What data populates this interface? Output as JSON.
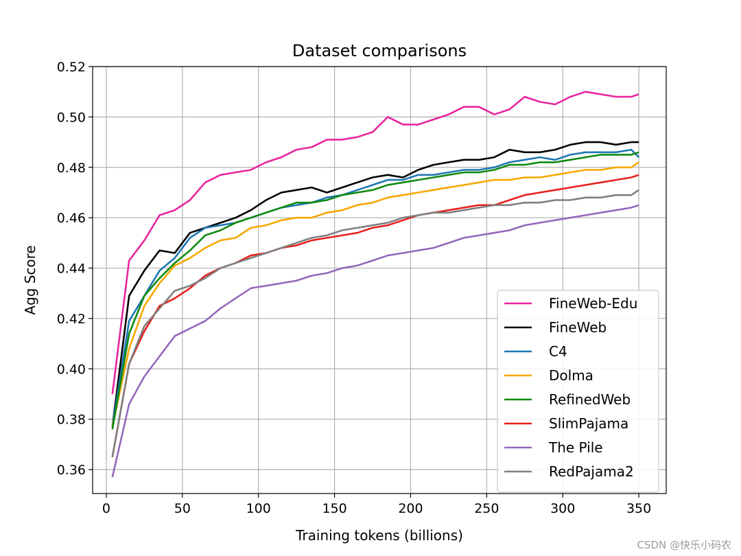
{
  "watermark": "CSDN @快乐小码农",
  "chart_data": {
    "type": "line",
    "title": "Dataset comparisons",
    "xlabel": "Training tokens (billions)",
    "ylabel": "Agg Score",
    "xlim": [
      -9,
      368
    ],
    "ylim": [
      0.3505,
      0.52
    ],
    "xticks": [
      0,
      50,
      100,
      150,
      200,
      250,
      300,
      350
    ],
    "yticks": [
      0.36,
      0.38,
      0.4,
      0.42,
      0.44,
      0.46,
      0.48,
      0.5,
      0.52
    ],
    "ytick_labels": [
      "0.36",
      "0.38",
      "0.40",
      "0.42",
      "0.44",
      "0.46",
      "0.48",
      "0.50",
      "0.52"
    ],
    "grid": true,
    "legend_position": "lower-right",
    "x": [
      4,
      15,
      25,
      35,
      45,
      55,
      65,
      75,
      85,
      95,
      105,
      115,
      125,
      135,
      145,
      155,
      165,
      175,
      185,
      195,
      205,
      215,
      225,
      235,
      245,
      255,
      265,
      275,
      285,
      295,
      305,
      315,
      325,
      335,
      345,
      350
    ],
    "series": [
      {
        "name": "FineWeb-Edu",
        "color": "#e8259e",
        "values": [
          0.39,
          0.443,
          0.451,
          0.461,
          0.463,
          0.467,
          0.474,
          0.477,
          0.478,
          0.479,
          0.482,
          0.484,
          0.487,
          0.488,
          0.491,
          0.491,
          0.492,
          0.494,
          0.5,
          0.497,
          0.497,
          0.499,
          0.501,
          0.504,
          0.504,
          0.501,
          0.503,
          0.508,
          0.506,
          0.505,
          0.508,
          0.51,
          0.509,
          0.508,
          0.508,
          0.509
        ]
      },
      {
        "name": "FineWeb",
        "color": "#000000",
        "values": [
          0.377,
          0.429,
          0.439,
          0.447,
          0.446,
          0.454,
          0.456,
          0.458,
          0.46,
          0.463,
          0.467,
          0.47,
          0.471,
          0.472,
          0.47,
          0.472,
          0.474,
          0.476,
          0.477,
          0.476,
          0.479,
          0.481,
          0.482,
          0.483,
          0.483,
          0.484,
          0.487,
          0.486,
          0.486,
          0.487,
          0.489,
          0.49,
          0.49,
          0.489,
          0.49,
          0.49
        ]
      },
      {
        "name": "C4",
        "color": "#1f77b4",
        "values": [
          0.377,
          0.419,
          0.429,
          0.439,
          0.444,
          0.452,
          0.456,
          0.457,
          0.458,
          0.46,
          0.462,
          0.464,
          0.465,
          0.466,
          0.468,
          0.469,
          0.471,
          0.473,
          0.475,
          0.475,
          0.477,
          0.477,
          0.478,
          0.479,
          0.479,
          0.48,
          0.482,
          0.483,
          0.484,
          0.483,
          0.485,
          0.486,
          0.486,
          0.486,
          0.487,
          0.484
        ]
      },
      {
        "name": "Dolma",
        "color": "#f5a800",
        "values": [
          0.377,
          0.408,
          0.425,
          0.434,
          0.441,
          0.444,
          0.448,
          0.451,
          0.452,
          0.456,
          0.457,
          0.459,
          0.46,
          0.46,
          0.462,
          0.463,
          0.465,
          0.466,
          0.468,
          0.469,
          0.47,
          0.471,
          0.472,
          0.473,
          0.474,
          0.475,
          0.475,
          0.476,
          0.476,
          0.477,
          0.478,
          0.479,
          0.479,
          0.48,
          0.48,
          0.482
        ]
      },
      {
        "name": "RefinedWeb",
        "color": "#108a10",
        "values": [
          0.376,
          0.414,
          0.429,
          0.436,
          0.442,
          0.447,
          0.453,
          0.455,
          0.458,
          0.46,
          0.462,
          0.464,
          0.466,
          0.466,
          0.467,
          0.469,
          0.47,
          0.471,
          0.473,
          0.474,
          0.475,
          0.476,
          0.477,
          0.478,
          0.478,
          0.479,
          0.481,
          0.481,
          0.482,
          0.482,
          0.483,
          0.484,
          0.485,
          0.485,
          0.485,
          0.486
        ]
      },
      {
        "name": "SlimPajama",
        "color": "#e8201c",
        "values": [
          0.365,
          0.402,
          0.415,
          0.425,
          0.428,
          0.432,
          0.437,
          0.44,
          0.442,
          0.445,
          0.446,
          0.448,
          0.449,
          0.451,
          0.452,
          0.453,
          0.454,
          0.456,
          0.457,
          0.459,
          0.461,
          0.462,
          0.463,
          0.464,
          0.465,
          0.465,
          0.467,
          0.469,
          0.47,
          0.471,
          0.472,
          0.473,
          0.474,
          0.475,
          0.476,
          0.477
        ]
      },
      {
        "name": "The Pile",
        "color": "#9467bd",
        "values": [
          0.357,
          0.386,
          0.397,
          0.405,
          0.413,
          0.416,
          0.419,
          0.424,
          0.428,
          0.432,
          0.433,
          0.434,
          0.435,
          0.437,
          0.438,
          0.44,
          0.441,
          0.443,
          0.445,
          0.446,
          0.447,
          0.448,
          0.45,
          0.452,
          0.453,
          0.454,
          0.455,
          0.457,
          0.458,
          0.459,
          0.46,
          0.461,
          0.462,
          0.463,
          0.464,
          0.465
        ]
      },
      {
        "name": "RedPajama2",
        "color": "#7f7f7f",
        "values": [
          0.365,
          0.402,
          0.417,
          0.424,
          0.431,
          0.433,
          0.436,
          0.44,
          0.442,
          0.444,
          0.446,
          0.448,
          0.45,
          0.452,
          0.453,
          0.455,
          0.456,
          0.457,
          0.458,
          0.46,
          0.461,
          0.462,
          0.462,
          0.463,
          0.464,
          0.465,
          0.465,
          0.466,
          0.466,
          0.467,
          0.467,
          0.468,
          0.468,
          0.469,
          0.469,
          0.471
        ]
      }
    ]
  }
}
